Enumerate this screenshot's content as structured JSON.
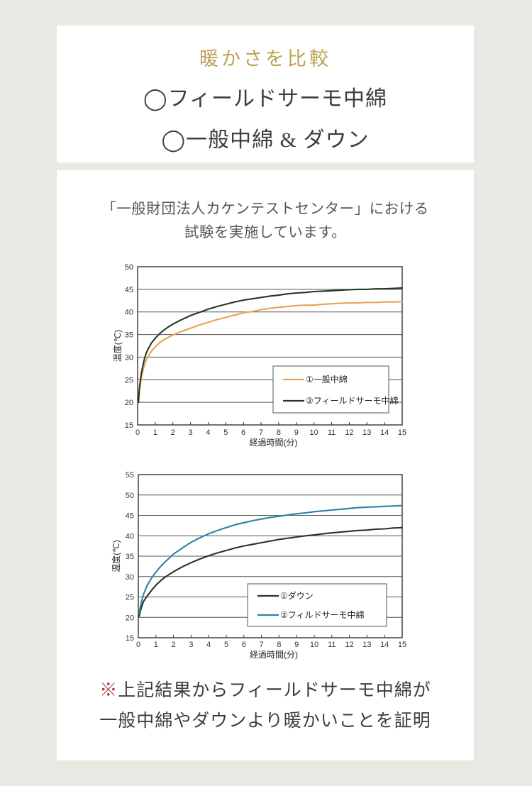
{
  "page": {
    "background": "#e9e8e2",
    "card_background": "#ffffff",
    "title_color": "#bfa055",
    "mark_color": "#b23939"
  },
  "header": {
    "title": "暖かさを比較",
    "items": [
      {
        "label": "◯フィールドサーモ中綿"
      },
      {
        "label": "◯一般中綿 & ダウン"
      }
    ]
  },
  "test_section": {
    "intro_line1": "「一般財団法人カケンテストセンター」における",
    "intro_line2": "試験を実施しています。",
    "conclusion_mark": "※",
    "conclusion_line1": "上記結果からフィールドサーモ中綿が",
    "conclusion_line2": "一般中綿やダウンより暖かいことを証明"
  },
  "chart_data": [
    {
      "type": "line",
      "title": "",
      "xlabel": "経過時間(分)",
      "ylabel": "温度(℃)",
      "xlim": [
        0,
        15
      ],
      "ylim": [
        15,
        50
      ],
      "xtick_step": 1,
      "ytick_step": 5,
      "grid": "horizontal",
      "legend_position": "lower right",
      "series": [
        {
          "name": "①一般中綿",
          "color": "#e8a254",
          "points": [
            [
              0.05,
              20
            ],
            [
              0.1,
              22.5
            ],
            [
              0.2,
              25.2
            ],
            [
              0.3,
              27
            ],
            [
              0.4,
              28.4
            ],
            [
              0.5,
              29.4
            ],
            [
              0.65,
              30.5
            ],
            [
              0.8,
              31.4
            ],
            [
              1,
              32.3
            ],
            [
              1.25,
              33.2
            ],
            [
              1.5,
              33.9
            ],
            [
              1.75,
              34.4
            ],
            [
              2,
              34.9
            ],
            [
              2.5,
              35.7
            ],
            [
              3,
              36.4
            ],
            [
              3.5,
              37.1
            ],
            [
              4,
              37.7
            ],
            [
              4.5,
              38.3
            ],
            [
              5,
              38.8
            ],
            [
              5.5,
              39.3
            ],
            [
              6,
              39.8
            ],
            [
              6.5,
              40.1
            ],
            [
              7,
              40.5
            ],
            [
              7.5,
              40.8
            ],
            [
              8,
              41
            ],
            [
              8.5,
              41.2
            ],
            [
              9,
              41.4
            ],
            [
              9.5,
              41.5
            ],
            [
              10,
              41.5
            ],
            [
              10.5,
              41.7
            ],
            [
              11,
              41.8
            ],
            [
              11.5,
              41.9
            ],
            [
              12,
              42
            ],
            [
              12.5,
              42
            ],
            [
              13,
              42.1
            ],
            [
              13.5,
              42.1
            ],
            [
              14,
              42.2
            ],
            [
              14.5,
              42.2
            ],
            [
              15,
              42.3
            ]
          ]
        },
        {
          "name": "②フィールドサーモ中綿",
          "color": "#24391f",
          "points": [
            [
              0.05,
              20
            ],
            [
              0.1,
              23
            ],
            [
              0.2,
              26.2
            ],
            [
              0.3,
              28.2
            ],
            [
              0.4,
              29.8
            ],
            [
              0.5,
              31
            ],
            [
              0.65,
              32.2
            ],
            [
              0.8,
              33.2
            ],
            [
              1,
              34.2
            ],
            [
              1.25,
              35.2
            ],
            [
              1.5,
              36
            ],
            [
              1.75,
              36.7
            ],
            [
              2,
              37.3
            ],
            [
              2.5,
              38.3
            ],
            [
              3,
              39.2
            ],
            [
              3.5,
              39.9
            ],
            [
              4,
              40.6
            ],
            [
              4.5,
              41.2
            ],
            [
              5,
              41.7
            ],
            [
              5.5,
              42.2
            ],
            [
              6,
              42.6
            ],
            [
              6.5,
              42.9
            ],
            [
              7,
              43.2
            ],
            [
              7.5,
              43.5
            ],
            [
              8,
              43.7
            ],
            [
              8.5,
              44
            ],
            [
              9,
              44.2
            ],
            [
              9.5,
              44.3
            ],
            [
              10,
              44.5
            ],
            [
              10.5,
              44.6
            ],
            [
              11,
              44.7
            ],
            [
              11.5,
              44.8
            ],
            [
              12,
              44.9
            ],
            [
              12.5,
              45
            ],
            [
              13,
              45
            ],
            [
              13.5,
              45.1
            ],
            [
              14,
              45.1
            ],
            [
              14.5,
              45.2
            ],
            [
              15,
              45.3
            ]
          ]
        }
      ]
    },
    {
      "type": "line",
      "title": "",
      "xlabel": "経過時間(分)",
      "ylabel": "温度(℃)",
      "xlim": [
        0,
        15
      ],
      "ylim": [
        15,
        55
      ],
      "xtick_step": 1,
      "ytick_step": 5,
      "grid": "horizontal",
      "legend_position": "lower right",
      "series": [
        {
          "name": "①ダウン",
          "color": "#24391f",
          "points": [
            [
              0.05,
              20.3
            ],
            [
              0.1,
              21.3
            ],
            [
              0.2,
              22.8
            ],
            [
              0.3,
              23.9
            ],
            [
              0.5,
              25.2
            ],
            [
              0.75,
              26.6
            ],
            [
              1,
              27.9
            ],
            [
              1.25,
              28.9
            ],
            [
              1.5,
              29.8
            ],
            [
              2,
              31.2
            ],
            [
              2.5,
              32.4
            ],
            [
              3,
              33.4
            ],
            [
              3.5,
              34.3
            ],
            [
              4,
              35.1
            ],
            [
              4.5,
              35.8
            ],
            [
              5,
              36.4
            ],
            [
              5.5,
              37
            ],
            [
              6,
              37.5
            ],
            [
              6.5,
              37.9
            ],
            [
              7,
              38.3
            ],
            [
              7.5,
              38.7
            ],
            [
              8,
              39.1
            ],
            [
              8.5,
              39.4
            ],
            [
              9,
              39.7
            ],
            [
              9.5,
              40
            ],
            [
              10,
              40.2
            ],
            [
              10.5,
              40.5
            ],
            [
              11,
              40.7
            ],
            [
              11.5,
              40.9
            ],
            [
              12,
              41.1
            ],
            [
              12.5,
              41.3
            ],
            [
              13,
              41.4
            ],
            [
              13.5,
              41.6
            ],
            [
              14,
              41.7
            ],
            [
              14.5,
              41.9
            ],
            [
              15,
              42
            ]
          ]
        },
        {
          "name": "②フィルドサーモ中綿",
          "color": "#2e80a6",
          "points": [
            [
              0.05,
              21
            ],
            [
              0.1,
              22.3
            ],
            [
              0.2,
              24.2
            ],
            [
              0.3,
              25.7
            ],
            [
              0.5,
              27.8
            ],
            [
              0.75,
              29.6
            ],
            [
              1,
              31.1
            ],
            [
              1.25,
              32.4
            ],
            [
              1.5,
              33.5
            ],
            [
              2,
              35.5
            ],
            [
              2.5,
              37
            ],
            [
              3,
              38.4
            ],
            [
              3.5,
              39.5
            ],
            [
              4,
              40.5
            ],
            [
              4.5,
              41.3
            ],
            [
              5,
              42
            ],
            [
              5.5,
              42.7
            ],
            [
              6,
              43.2
            ],
            [
              6.5,
              43.7
            ],
            [
              7,
              44.1
            ],
            [
              7.5,
              44.5
            ],
            [
              8,
              44.8
            ],
            [
              8.5,
              45.1
            ],
            [
              9,
              45.4
            ],
            [
              9.5,
              45.6
            ],
            [
              10,
              45.9
            ],
            [
              10.5,
              46.1
            ],
            [
              11,
              46.3
            ],
            [
              11.5,
              46.5
            ],
            [
              12,
              46.7
            ],
            [
              12.5,
              46.9
            ],
            [
              13,
              47
            ],
            [
              13.5,
              47.1
            ],
            [
              14,
              47.2
            ],
            [
              14.5,
              47.3
            ],
            [
              15,
              47.4
            ]
          ]
        }
      ]
    }
  ]
}
